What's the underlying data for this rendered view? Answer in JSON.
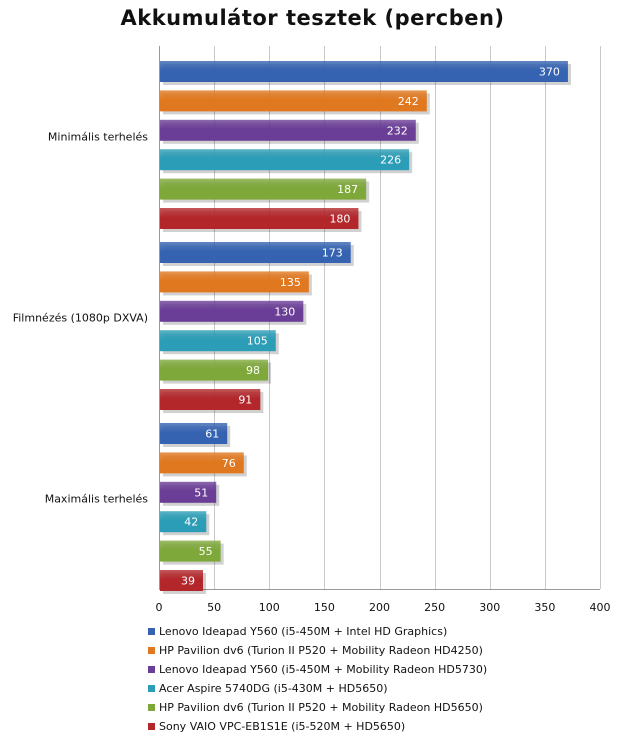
{
  "chart_data": {
    "type": "bar",
    "orientation": "horizontal",
    "title": "Akkumulátor tesztek (percben)",
    "categories": [
      "Minimális terhelés",
      "Filmnézés (1080p DXVA)",
      "Maximális terhelés"
    ],
    "xlim": [
      0,
      400
    ],
    "ticks": [
      0,
      50,
      100,
      150,
      200,
      250,
      300,
      350,
      400
    ],
    "grid": "vertical",
    "legend_position": "bottom",
    "series": [
      {
        "name": "Lenovo Ideapad Y560 (i5-450M + Intel HD Graphics)",
        "color": "#3562b1",
        "values": [
          370,
          173,
          61
        ]
      },
      {
        "name": "HP Pavilion dv6 (Turion II P520 + Mobility Radeon HD4250)",
        "color": "#e0781f",
        "values": [
          242,
          135,
          76
        ]
      },
      {
        "name": "Lenovo Ideapad Y560 (i5-450M + Mobility Radeon HD5730)",
        "color": "#6a3d96",
        "values": [
          232,
          130,
          51
        ]
      },
      {
        "name": "Acer Aspire 5740DG (i5-430M + HD5650)",
        "color": "#2b9db6",
        "values": [
          226,
          105,
          42
        ]
      },
      {
        "name": "HP Pavilion dv6 (Turion II P520 + Mobility Radeon HD5650)",
        "color": "#7ea83a",
        "values": [
          187,
          98,
          55
        ]
      },
      {
        "name": "Sony VAIO VPC-EB1S1E (i5-520M + HD5650)",
        "color": "#b3272b",
        "values": [
          180,
          91,
          39
        ]
      }
    ]
  }
}
